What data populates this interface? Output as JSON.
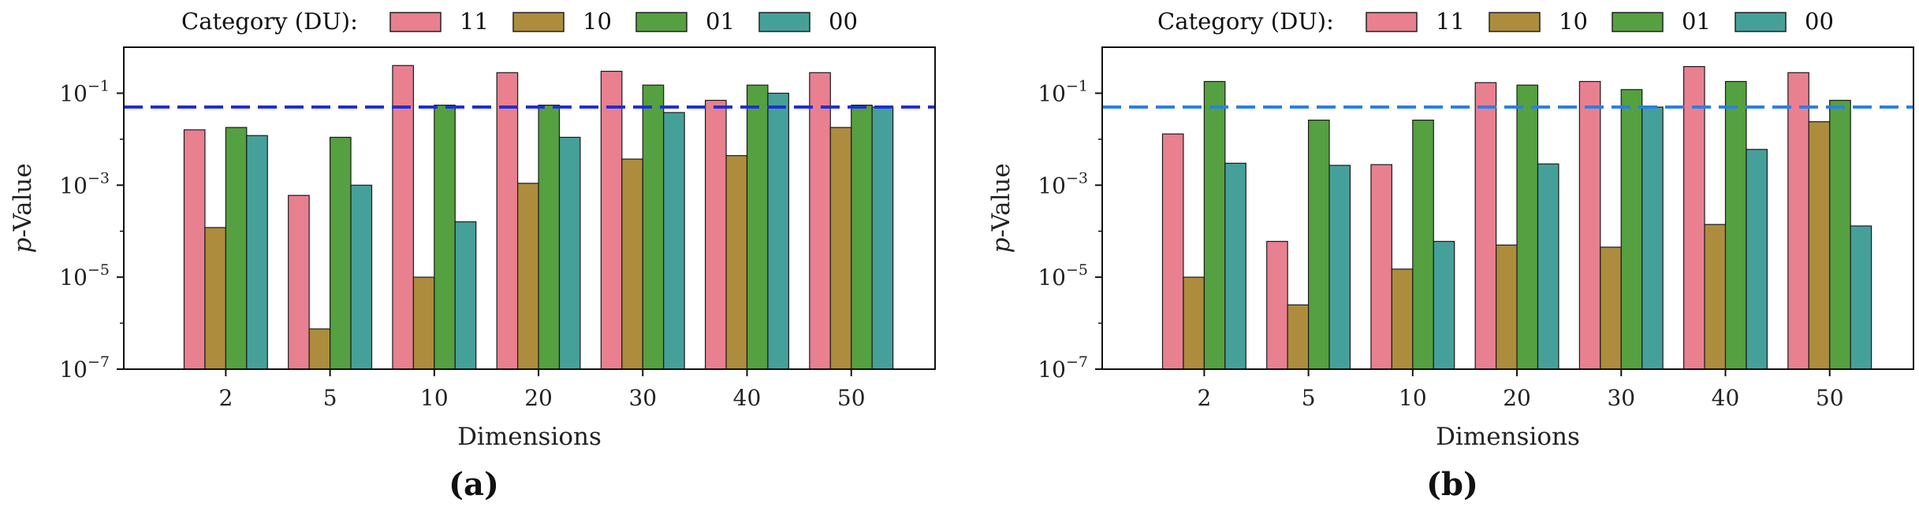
{
  "legend_title": "Category (DU):",
  "legend_entries": [
    {
      "label": "11",
      "color": "#e88090"
    },
    {
      "label": "10",
      "color": "#ad8c3e"
    },
    {
      "label": "01",
      "color": "#55a040"
    },
    {
      "label": "00",
      "color": "#46a09a"
    }
  ],
  "chart_data": [
    {
      "type": "bar",
      "panel_label": "(a)",
      "title": "",
      "xlabel": "Dimensions",
      "ylabel": "p-Value",
      "yscale": "log",
      "ylim_exponents": [
        -7,
        0
      ],
      "yticks": [
        "10^-7",
        "10^-5",
        "10^-3",
        "10^-1"
      ],
      "categories": [
        "2",
        "5",
        "10",
        "20",
        "30",
        "40",
        "50"
      ],
      "threshold": {
        "value": 0.05,
        "color": "#1f2fd6"
      },
      "series": [
        {
          "name": "11",
          "values": [
            0.016,
            0.0006,
            0.4,
            0.28,
            0.3,
            0.07,
            0.28
          ]
        },
        {
          "name": "10",
          "values": [
            0.00012,
            7.5e-07,
            1e-05,
            0.0011,
            0.0037,
            0.0044,
            0.018
          ]
        },
        {
          "name": "01",
          "values": [
            0.018,
            0.011,
            0.055,
            0.055,
            0.15,
            0.15,
            0.055
          ]
        },
        {
          "name": "00",
          "values": [
            0.012,
            0.001,
            0.00016,
            0.011,
            0.038,
            0.1,
            0.05
          ]
        }
      ]
    },
    {
      "type": "bar",
      "panel_label": "(b)",
      "title": "",
      "xlabel": "Dimensions",
      "ylabel": "p-Value",
      "yscale": "log",
      "ylim_exponents": [
        -7,
        0
      ],
      "yticks": [
        "10^-7",
        "10^-5",
        "10^-3",
        "10^-1"
      ],
      "categories": [
        "2",
        "5",
        "10",
        "20",
        "30",
        "40",
        "50"
      ],
      "threshold": {
        "value": 0.05,
        "color": "#2a7fe8"
      },
      "series": [
        {
          "name": "11",
          "values": [
            0.013,
            6e-05,
            0.0028,
            0.17,
            0.18,
            0.38,
            0.28
          ]
        },
        {
          "name": "10",
          "values": [
            1e-05,
            2.5e-06,
            1.5e-05,
            5e-05,
            4.5e-05,
            0.00014,
            0.024
          ]
        },
        {
          "name": "01",
          "values": [
            0.18,
            0.026,
            0.026,
            0.15,
            0.12,
            0.18,
            0.07
          ]
        },
        {
          "name": "00",
          "values": [
            0.003,
            0.0027,
            6e-05,
            0.0029,
            0.05,
            0.006,
            0.00013
          ]
        }
      ]
    }
  ]
}
